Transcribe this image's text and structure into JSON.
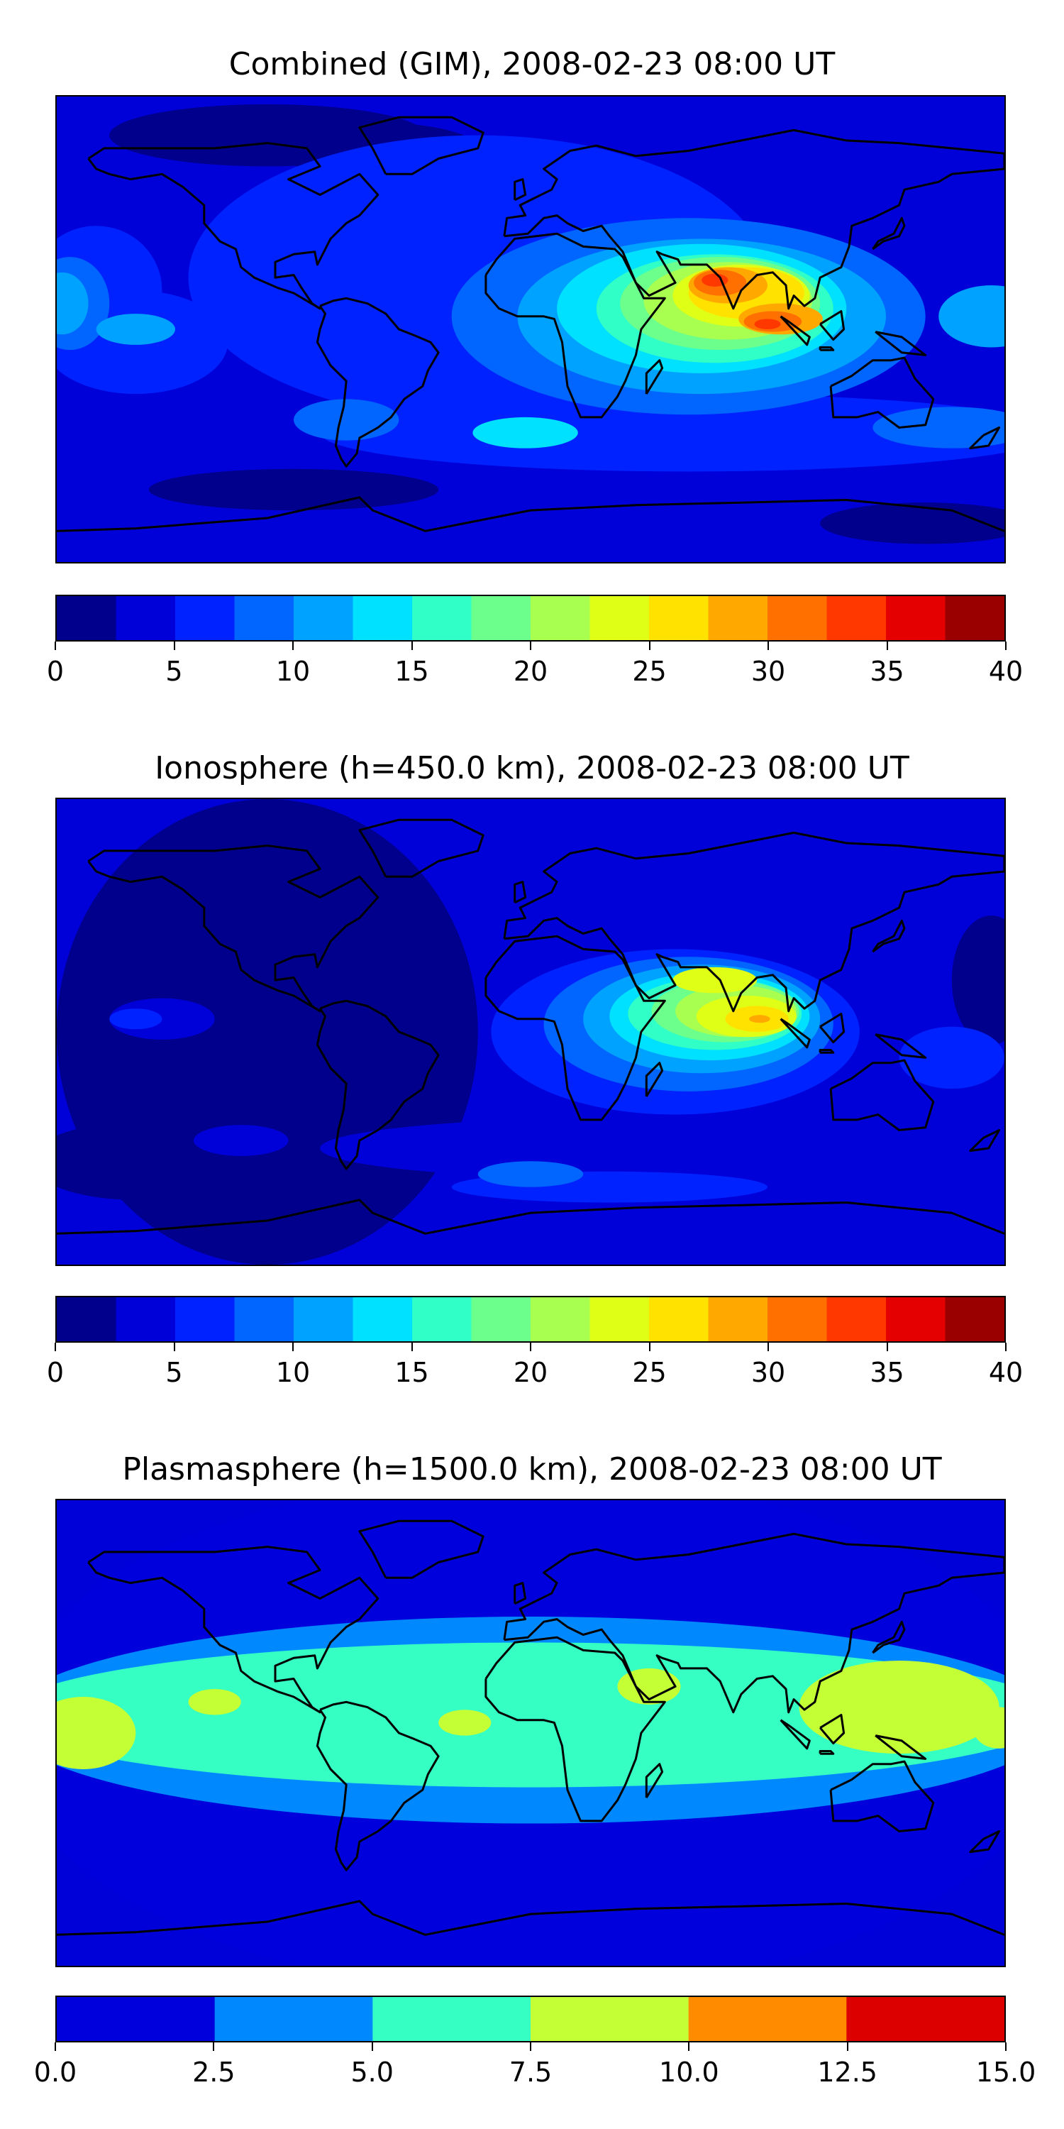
{
  "chart_data": [
    {
      "type": "heatmap",
      "title": "Combined (GIM), 2008-02-23 08:00 UT",
      "xlabel": "",
      "ylabel": "",
      "grid": false,
      "colorbar": {
        "location": "bottom",
        "levels": [
          0,
          2.5,
          5,
          7.5,
          10,
          12.5,
          15,
          17.5,
          20,
          22.5,
          25,
          27.5,
          30,
          32.5,
          35,
          37.5,
          40
        ],
        "tick_values": [
          0,
          5,
          10,
          15,
          20,
          25,
          30,
          35,
          40
        ],
        "tick_labels": [
          "0",
          "5",
          "10",
          "15",
          "20",
          "25",
          "30",
          "35",
          "40"
        ],
        "colors": [
          "#00008c",
          "#0000d8",
          "#0022ff",
          "#0066ff",
          "#00a2ff",
          "#00e0ff",
          "#30ffc8",
          "#6cff8c",
          "#a8ff50",
          "#e0ff16",
          "#ffe200",
          "#ffa800",
          "#ff7000",
          "#ff3800",
          "#e40000",
          "#9a0000"
        ]
      },
      "peak_regions": [
        {
          "region": "South Asia / Arabian Sea",
          "approx_value": 32.5
        },
        {
          "region": "Indian Ocean east",
          "approx_value": 32.5
        },
        {
          "region": "Southeast Asia",
          "approx_value": 30
        },
        {
          "region": "Americas",
          "approx_value": 5
        }
      ]
    },
    {
      "type": "heatmap",
      "title": "Ionosphere  (h=450.0 km), 2008-02-23 08:00 UT",
      "xlabel": "",
      "ylabel": "",
      "grid": false,
      "colorbar": {
        "location": "bottom",
        "levels": [
          0,
          2.5,
          5,
          7.5,
          10,
          12.5,
          15,
          17.5,
          20,
          22.5,
          25,
          27.5,
          30,
          32.5,
          35,
          37.5,
          40
        ],
        "tick_values": [
          0,
          5,
          10,
          15,
          20,
          25,
          30,
          35,
          40
        ],
        "tick_labels": [
          "0",
          "5",
          "10",
          "15",
          "20",
          "25",
          "30",
          "35",
          "40"
        ],
        "colors": [
          "#00008c",
          "#0000d8",
          "#0022ff",
          "#0066ff",
          "#00a2ff",
          "#00e0ff",
          "#30ffc8",
          "#6cff8c",
          "#a8ff50",
          "#e0ff16",
          "#ffe200",
          "#ffa800",
          "#ff7000",
          "#ff3800",
          "#e40000",
          "#9a0000"
        ]
      },
      "peak_regions": [
        {
          "region": "Indian Ocean",
          "approx_value": 27.5
        },
        {
          "region": "South Asia",
          "approx_value": 25
        },
        {
          "region": "Americas",
          "approx_value": 2.5
        }
      ]
    },
    {
      "type": "heatmap",
      "title": "Plasmasphere (h=1500.0 km), 2008-02-23 08:00 UT",
      "xlabel": "",
      "ylabel": "",
      "grid": false,
      "colorbar": {
        "location": "bottom",
        "levels": [
          0,
          2.5,
          5,
          7.5,
          10,
          12.5,
          15
        ],
        "tick_values": [
          0,
          2.5,
          5,
          7.5,
          10,
          12.5,
          15
        ],
        "tick_labels": [
          "0.0",
          "2.5",
          "5.0",
          "7.5",
          "10.0",
          "12.5",
          "15.0"
        ],
        "colors": [
          "#0000dd",
          "#0088ff",
          "#36ffc4",
          "#c4ff36",
          "#ff8c00",
          "#dd0000"
        ]
      },
      "peak_regions": [
        {
          "region": "Western Pacific / Australia",
          "approx_value": 10
        },
        {
          "region": "Eastern Pacific",
          "approx_value": 10
        },
        {
          "region": "Arabian Sea",
          "approx_value": 10
        },
        {
          "region": "Polar regions",
          "approx_value": 2.5
        }
      ]
    }
  ]
}
